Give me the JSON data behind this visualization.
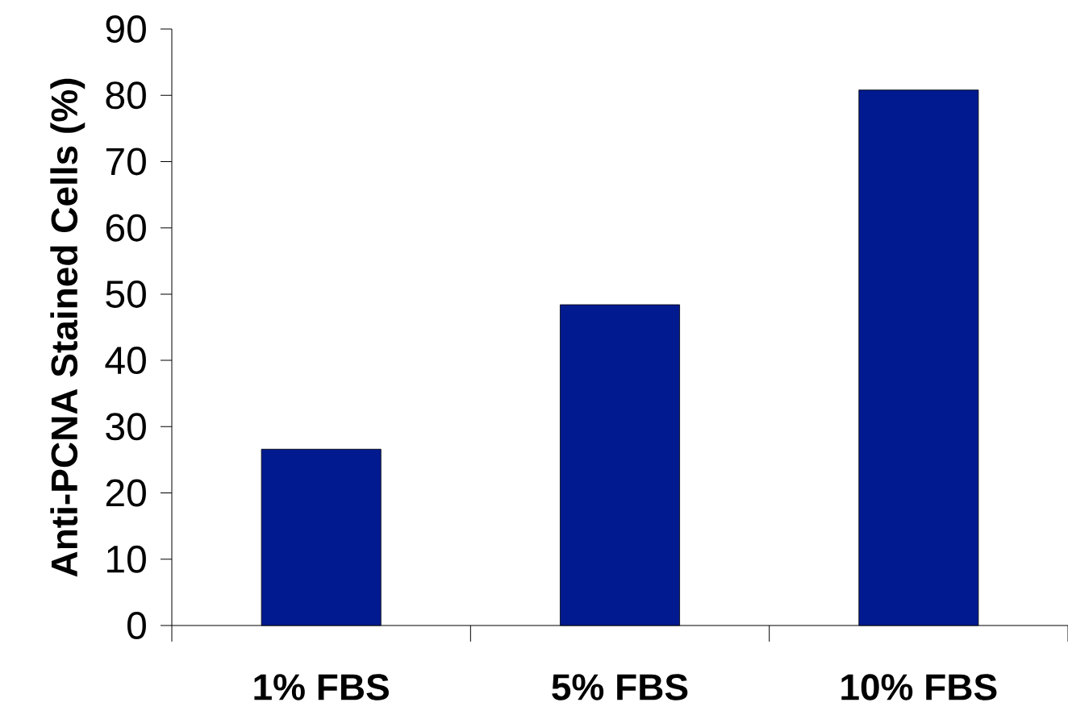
{
  "chart_data": {
    "type": "bar",
    "ylabel": "Anti-PCNA Stained Cells (%)",
    "categories": [
      "1% FBS",
      "5% FBS",
      "10% FBS"
    ],
    "values": [
      26.6,
      48.4,
      80.8
    ],
    "color": "#021a8f",
    "ylim": [
      0,
      90
    ],
    "yticks": [
      0,
      10,
      20,
      30,
      40,
      50,
      60,
      70,
      80,
      90
    ]
  }
}
